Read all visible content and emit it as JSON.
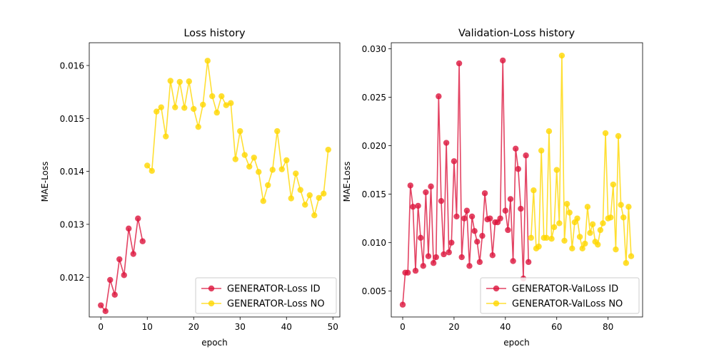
{
  "chart_data": [
    {
      "type": "line",
      "title": "Loss history",
      "xlabel": "epoch",
      "ylabel": "MAE-Loss",
      "xlim": [
        -2.5,
        51.5
      ],
      "ylim": [
        0.01125,
        0.01643
      ],
      "xticks": [
        "0",
        "10",
        "20",
        "30",
        "40",
        "50"
      ],
      "yticks": [
        "0.012",
        "0.013",
        "0.014",
        "0.015",
        "0.016"
      ],
      "legend_position": "lower-right",
      "series": [
        {
          "name": "GENERATOR-Loss ID",
          "color": "#dc143c",
          "x": [
            0,
            1,
            2,
            3,
            4,
            5,
            6,
            7,
            8,
            9
          ],
          "y": [
            0.01147,
            0.01136,
            0.01195,
            0.01167,
            0.01234,
            0.01204,
            0.01292,
            0.01244,
            0.01311,
            0.01268
          ]
        },
        {
          "name": "GENERATOR-Loss NO",
          "color": "#ffd700",
          "x": [
            10,
            11,
            12,
            13,
            14,
            15,
            16,
            17,
            18,
            19,
            20,
            21,
            22,
            23,
            24,
            25,
            26,
            27,
            28,
            29,
            30,
            31,
            32,
            33,
            34,
            35,
            36,
            37,
            38,
            39,
            40,
            41,
            42,
            43,
            44,
            45,
            46,
            47,
            48,
            49
          ],
          "y": [
            0.01411,
            0.01401,
            0.01513,
            0.01521,
            0.01466,
            0.01571,
            0.01521,
            0.01569,
            0.0152,
            0.0157,
            0.01518,
            0.01484,
            0.01526,
            0.01609,
            0.01542,
            0.01511,
            0.01542,
            0.01525,
            0.01529,
            0.01423,
            0.01476,
            0.01431,
            0.01409,
            0.01426,
            0.01399,
            0.01344,
            0.01374,
            0.01403,
            0.01476,
            0.01404,
            0.01421,
            0.01349,
            0.01396,
            0.01365,
            0.01337,
            0.01355,
            0.01317,
            0.0135,
            0.01358,
            0.01441
          ]
        }
      ]
    },
    {
      "type": "line",
      "title": "Validation-Loss history",
      "xlabel": "epoch",
      "ylabel": "MAE-Loss",
      "xlim": [
        -4.45,
        93.45
      ],
      "ylim": [
        0.00233,
        0.03063
      ],
      "xticks": [
        "0",
        "20",
        "40",
        "60",
        "80"
      ],
      "yticks": [
        "0.005",
        "0.010",
        "0.015",
        "0.020",
        "0.025",
        "0.030"
      ],
      "legend_position": "lower-right",
      "series": [
        {
          "name": "GENERATOR-ValLoss ID",
          "color": "#dc143c",
          "x": [
            0,
            1,
            2,
            3,
            4,
            5,
            6,
            7,
            8,
            9,
            10,
            11,
            12,
            13,
            14,
            15,
            16,
            17,
            18,
            19,
            20,
            21,
            22,
            23,
            24,
            25,
            26,
            27,
            28,
            29,
            30,
            31,
            32,
            33,
            34,
            35,
            36,
            37,
            38,
            39,
            40,
            41,
            42,
            43,
            44,
            45,
            46,
            47,
            48,
            49
          ],
          "y": [
            0.0036,
            0.0069,
            0.0069,
            0.0159,
            0.0137,
            0.0071,
            0.0138,
            0.0105,
            0.0076,
            0.0152,
            0.0086,
            0.0158,
            0.0079,
            0.0085,
            0.0251,
            0.0143,
            0.0088,
            0.0203,
            0.009,
            0.01,
            0.0184,
            0.0127,
            0.0285,
            0.0085,
            0.0125,
            0.0133,
            0.0076,
            0.0127,
            0.0112,
            0.0101,
            0.008,
            0.0107,
            0.0151,
            0.0124,
            0.0125,
            0.0087,
            0.0121,
            0.0121,
            0.0125,
            0.0288,
            0.0133,
            0.0113,
            0.0145,
            0.0081,
            0.0197,
            0.0176,
            0.0135,
            0.0063,
            0.019,
            0.008
          ]
        },
        {
          "name": "GENERATOR-ValLoss NO",
          "color": "#ffd700",
          "x": [
            50,
            51,
            52,
            53,
            54,
            55,
            56,
            57,
            58,
            59,
            60,
            61,
            62,
            63,
            64,
            65,
            66,
            67,
            68,
            69,
            70,
            71,
            72,
            73,
            74,
            75,
            76,
            77,
            78,
            79,
            80,
            81,
            82,
            83,
            84,
            85,
            86,
            87,
            88,
            89
          ],
          "y": [
            0.0105,
            0.0154,
            0.0094,
            0.0096,
            0.0195,
            0.0105,
            0.0105,
            0.0215,
            0.0104,
            0.0116,
            0.0175,
            0.012,
            0.0293,
            0.0102,
            0.014,
            0.0131,
            0.0094,
            0.0121,
            0.0125,
            0.0106,
            0.0094,
            0.0099,
            0.0137,
            0.011,
            0.0119,
            0.0101,
            0.0098,
            0.0113,
            0.012,
            0.0213,
            0.0125,
            0.0126,
            0.016,
            0.0093,
            0.021,
            0.0139,
            0.0126,
            0.0079,
            0.0137,
            0.0086
          ]
        }
      ]
    }
  ]
}
